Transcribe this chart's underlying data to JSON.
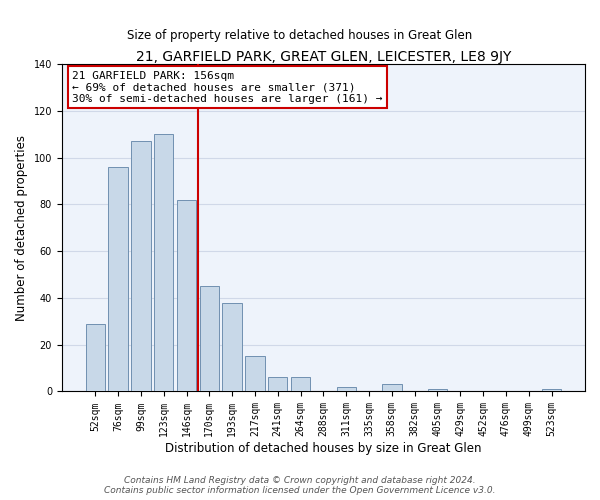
{
  "title": "21, GARFIELD PARK, GREAT GLEN, LEICESTER, LE8 9JY",
  "subtitle": "Size of property relative to detached houses in Great Glen",
  "xlabel": "Distribution of detached houses by size in Great Glen",
  "ylabel": "Number of detached properties",
  "bar_labels": [
    "52sqm",
    "76sqm",
    "99sqm",
    "123sqm",
    "146sqm",
    "170sqm",
    "193sqm",
    "217sqm",
    "241sqm",
    "264sqm",
    "288sqm",
    "311sqm",
    "335sqm",
    "358sqm",
    "382sqm",
    "405sqm",
    "429sqm",
    "452sqm",
    "476sqm",
    "499sqm",
    "523sqm"
  ],
  "bar_values": [
    29,
    96,
    107,
    110,
    82,
    45,
    38,
    15,
    6,
    6,
    0,
    2,
    0,
    3,
    0,
    1,
    0,
    0,
    0,
    0,
    1
  ],
  "bar_color": "#c8d8e8",
  "bar_edge_color": "#7090b0",
  "vline_x_index": 4.5,
  "vline_color": "#cc0000",
  "annotation_line1": "21 GARFIELD PARK: 156sqm",
  "annotation_line2": "← 69% of detached houses are smaller (371)",
  "annotation_line3": "30% of semi-detached houses are larger (161) →",
  "annotation_box_color": "white",
  "annotation_box_edge_color": "#cc0000",
  "ylim": [
    0,
    140
  ],
  "yticks": [
    0,
    20,
    40,
    60,
    80,
    100,
    120,
    140
  ],
  "footer_line1": "Contains HM Land Registry data © Crown copyright and database right 2024.",
  "footer_line2": "Contains public sector information licensed under the Open Government Licence v3.0.",
  "bg_color": "#eef3fb",
  "grid_color": "#d0d8e8"
}
